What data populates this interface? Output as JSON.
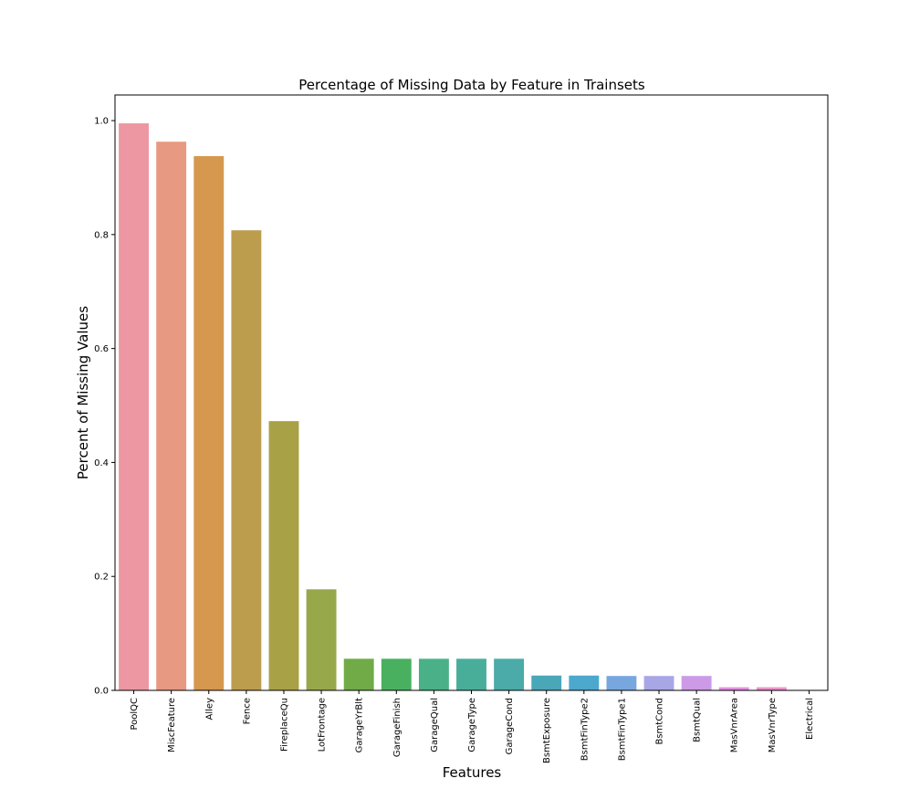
{
  "chart_data": {
    "type": "bar",
    "title": "Percentage of Missing Data by Feature in Trainsets",
    "xlabel": "Features",
    "ylabel": "Percent of Missing Values",
    "ylim": [
      0,
      1.045
    ],
    "yticks": [
      "0.0",
      "0.2",
      "0.4",
      "0.6",
      "0.8",
      "1.0"
    ],
    "grid": false,
    "categories": [
      "PoolQC",
      "MiscFeature",
      "Alley",
      "Fence",
      "FireplaceQu",
      "LotFrontage",
      "GarageYrBlt",
      "GarageFinish",
      "GarageQual",
      "GarageType",
      "GarageCond",
      "BsmtExposure",
      "BsmtFinType2",
      "BsmtFinType1",
      "BsmtCond",
      "BsmtQual",
      "MasVnrArea",
      "MasVnrType",
      "Electrical"
    ],
    "values": [
      0.9952,
      0.963,
      0.9377,
      0.8075,
      0.4726,
      0.1774,
      0.0555,
      0.0555,
      0.0555,
      0.0555,
      0.0555,
      0.026,
      0.026,
      0.0253,
      0.0253,
      0.0253,
      0.0055,
      0.0055,
      0.0007
    ],
    "colors": [
      "#ec97a2",
      "#e89981",
      "#d5984e",
      "#bc9d4e",
      "#a9a145",
      "#97a84a",
      "#70ab48",
      "#49b060",
      "#4ab087",
      "#49ae99",
      "#4aaba8",
      "#4aa7b8",
      "#4ca8cd",
      "#78a7df",
      "#a9a6e6",
      "#cc9ae6",
      "#e58ee2",
      "#ed91cc",
      "#ec9ab5"
    ]
  }
}
